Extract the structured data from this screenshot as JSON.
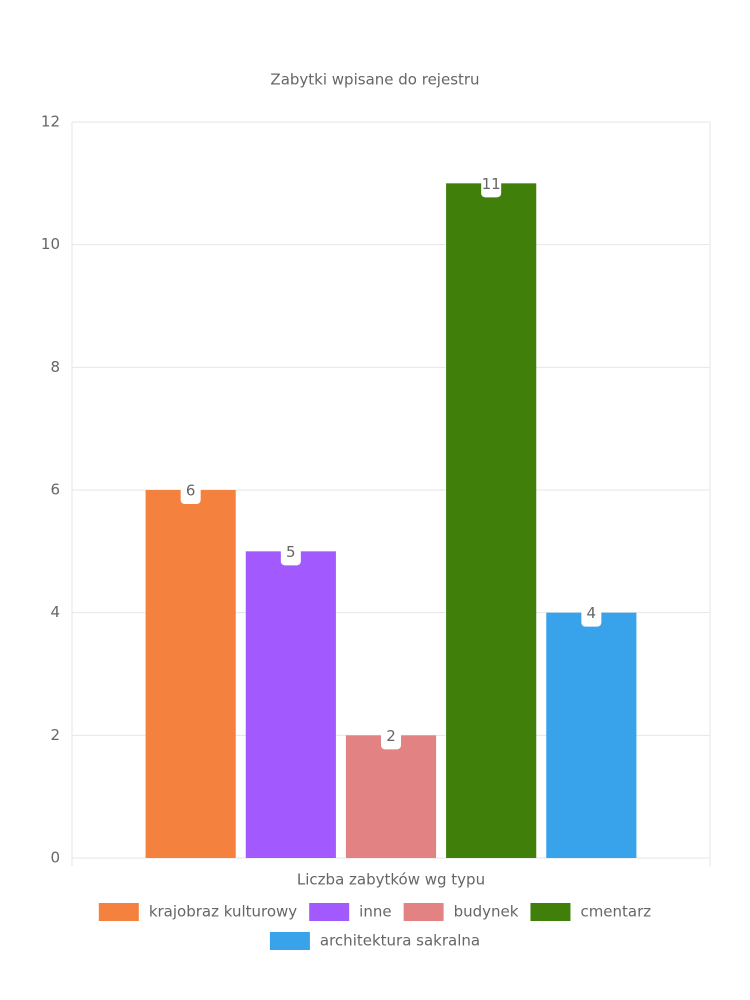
{
  "chart_data": {
    "type": "bar",
    "title": "Zabytki wpisane do rejestru",
    "categories": [
      "Liczba zabytków wg typu"
    ],
    "series": [
      {
        "name": "krajobraz kulturowy",
        "color": "#f5813f",
        "values": [
          6
        ]
      },
      {
        "name": "inne",
        "color": "#a259fe",
        "values": [
          5
        ]
      },
      {
        "name": "budynek",
        "color": "#e38282",
        "values": [
          2
        ]
      },
      {
        "name": "cmentarz",
        "color": "#3f7f0a",
        "values": [
          11
        ]
      },
      {
        "name": "architektura sakralna",
        "color": "#38a3eb",
        "values": [
          4
        ]
      }
    ],
    "ylim": [
      0,
      12
    ],
    "yticks": [
      0,
      2,
      4,
      6,
      8,
      10,
      12
    ],
    "grid": true,
    "legend": "bottom"
  }
}
